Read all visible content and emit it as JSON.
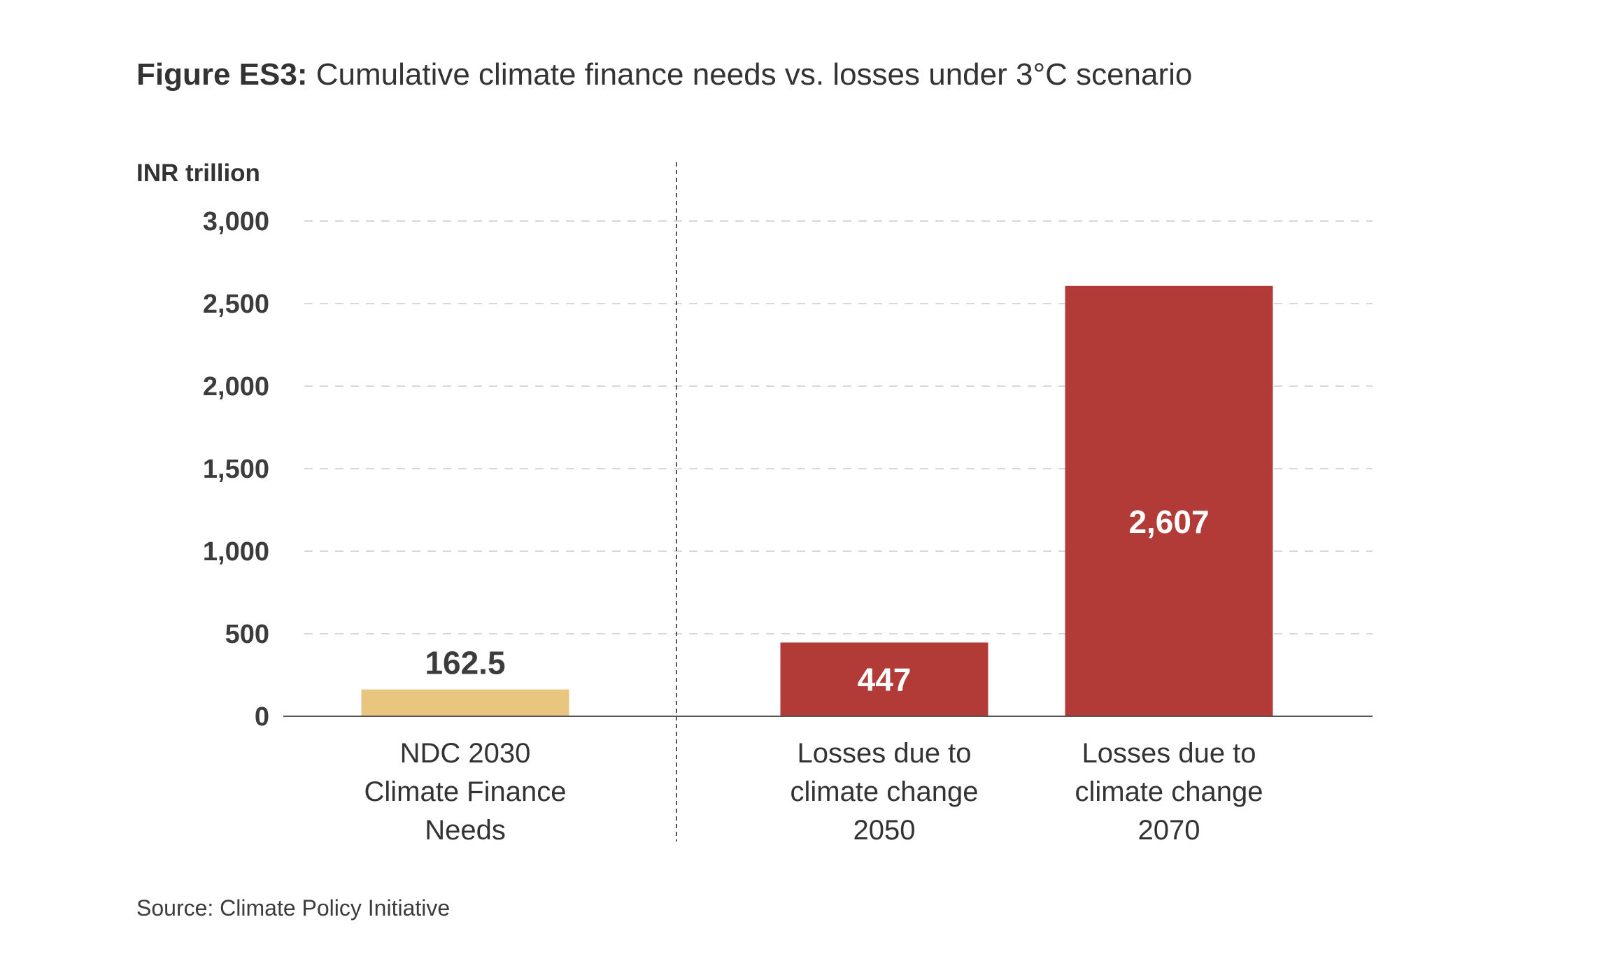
{
  "figure": {
    "title_prefix": "Figure ES3:",
    "title_text": "Cumulative climate finance needs vs. losses under 3°C scenario",
    "source": "Source: Climate Policy Initiative"
  },
  "chart_data": {
    "type": "bar",
    "title": "Figure ES3: Cumulative climate finance needs vs. losses under 3°C scenario",
    "ylabel": "INR trillion",
    "xlabel": "",
    "ylim": [
      0,
      3000
    ],
    "yticks": [
      0,
      500,
      1000,
      1500,
      2000,
      2500,
      3000
    ],
    "ytick_labels": [
      "0",
      "500",
      "1,000",
      "1,500",
      "2,000",
      "2,500",
      "3,000"
    ],
    "grid": "horizontal-dashed",
    "categories": [
      [
        "NDC 2030",
        "Climate Finance",
        "Needs"
      ],
      [
        "Losses due to",
        "climate change",
        "2050"
      ],
      [
        "Losses due to",
        "climate change",
        "2070"
      ]
    ],
    "values": [
      162.5,
      447,
      2607
    ],
    "value_labels": [
      "162.5",
      "447",
      "2,607"
    ],
    "colors": [
      "#e8c680",
      "#b33b37",
      "#b33b37"
    ]
  }
}
